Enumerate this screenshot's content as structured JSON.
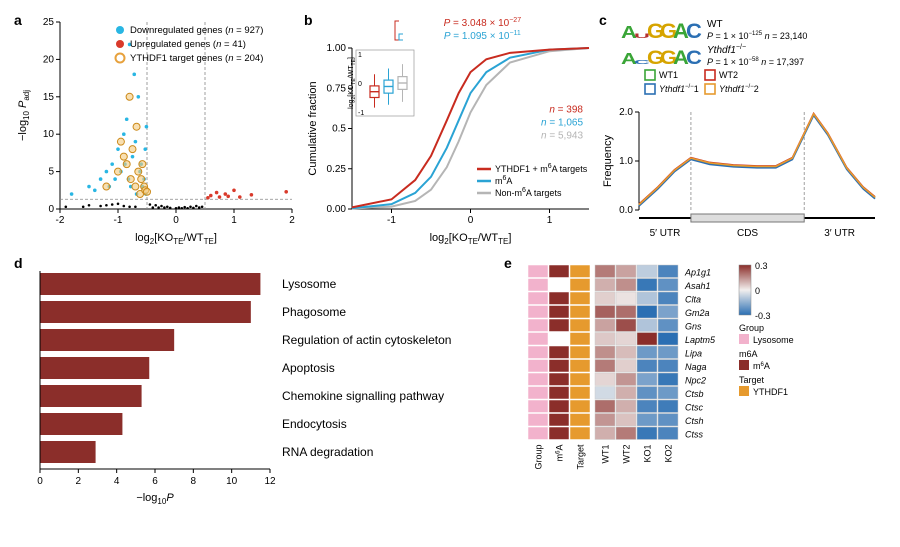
{
  "panel_a": {
    "label": "a",
    "type": "scatter",
    "xlabel": "log2[KOTE/WTTE]",
    "ylabel": "−log10 Padj",
    "xlim": [
      -2,
      2
    ],
    "xticks": [
      -2,
      -1,
      0,
      1,
      2
    ],
    "ylim": [
      0,
      25
    ],
    "yticks": [
      0,
      5,
      10,
      15,
      20,
      25
    ],
    "vlines_x": [
      -0.5,
      0.5
    ],
    "hline_y": 1.3,
    "legend": [
      {
        "label": "Downregulated genes (n = 927)",
        "color": "#29b6e3",
        "marker": "circle"
      },
      {
        "label": "Upregulated genes (n = 41)",
        "color": "#d93a2b",
        "marker": "circle"
      },
      {
        "label": "YTHDF1 target genes (n = 204)",
        "color": "#e7a13c",
        "marker": "circle-open"
      }
    ],
    "points_black": [
      [
        -1.9,
        0.3
      ],
      [
        -1.6,
        0.3
      ],
      [
        -1.5,
        0.5
      ],
      [
        -1.3,
        0.4
      ],
      [
        -1.2,
        0.5
      ],
      [
        -1.1,
        0.6
      ],
      [
        -1.0,
        0.7
      ],
      [
        -0.9,
        0.4
      ],
      [
        -0.8,
        0.3
      ],
      [
        -0.7,
        0.3
      ],
      [
        -0.4,
        0.2
      ],
      [
        -0.3,
        0.2
      ],
      [
        -0.2,
        0.2
      ],
      [
        -0.1,
        0.15
      ],
      [
        0.0,
        0.1
      ],
      [
        0.1,
        0.1
      ],
      [
        0.2,
        0.1
      ],
      [
        0.3,
        0.15
      ],
      [
        0.4,
        0.2
      ],
      [
        0.45,
        0.3
      ],
      [
        -0.45,
        0.6
      ],
      [
        -0.35,
        0.5
      ],
      [
        -0.25,
        0.4
      ],
      [
        -0.15,
        0.3
      ],
      [
        0.05,
        0.2
      ],
      [
        0.15,
        0.25
      ],
      [
        0.25,
        0.3
      ],
      [
        0.35,
        0.4
      ]
    ],
    "points_down": [
      [
        -1.8,
        2
      ],
      [
        -1.5,
        3
      ],
      [
        -1.4,
        2.5
      ],
      [
        -1.3,
        4
      ],
      [
        -1.2,
        5
      ],
      [
        -1.15,
        3
      ],
      [
        -1.1,
        6
      ],
      [
        -1.05,
        4
      ],
      [
        -1.0,
        8
      ],
      [
        -0.95,
        5
      ],
      [
        -0.9,
        10
      ],
      [
        -0.88,
        6
      ],
      [
        -0.85,
        12
      ],
      [
        -0.82,
        4
      ],
      [
        -0.8,
        22
      ],
      [
        -0.78,
        3
      ],
      [
        -0.75,
        7
      ],
      [
        -0.72,
        18
      ],
      [
        -0.7,
        9
      ],
      [
        -0.68,
        2
      ],
      [
        -0.65,
        15
      ],
      [
        -0.62,
        5
      ],
      [
        -0.6,
        6
      ],
      [
        -0.58,
        3
      ],
      [
        -0.55,
        4
      ],
      [
        -0.53,
        8
      ],
      [
        -0.52,
        2
      ],
      [
        -0.51,
        11
      ]
    ],
    "points_up": [
      [
        0.55,
        1.5
      ],
      [
        0.6,
        1.8
      ],
      [
        0.7,
        2.2
      ],
      [
        0.75,
        1.6
      ],
      [
        0.85,
        2.0
      ],
      [
        0.9,
        1.7
      ],
      [
        1.0,
        2.5
      ],
      [
        1.1,
        1.6
      ],
      [
        1.3,
        1.9
      ],
      [
        1.9,
        2.3
      ]
    ],
    "points_target": [
      [
        -1.2,
        3
      ],
      [
        -1.0,
        5
      ],
      [
        -0.95,
        9
      ],
      [
        -0.9,
        7
      ],
      [
        -0.85,
        6
      ],
      [
        -0.8,
        15
      ],
      [
        -0.78,
        4
      ],
      [
        -0.75,
        8
      ],
      [
        -0.7,
        3
      ],
      [
        -0.68,
        11
      ],
      [
        -0.65,
        5
      ],
      [
        -0.62,
        2
      ],
      [
        -0.6,
        4
      ],
      [
        -0.58,
        6
      ],
      [
        -0.55,
        3
      ],
      [
        -0.53,
        2.5
      ],
      [
        -0.5,
        2.3
      ]
    ],
    "colors": {
      "black": "#000000",
      "down": "#29b6e3",
      "up": "#d93a2b",
      "target_fill": "#f4c97d",
      "target_stroke": "#cc8a1a"
    }
  },
  "panel_b": {
    "label": "b",
    "type": "ecdf",
    "title_p1": {
      "text": "P = 3.048 × 10−27",
      "color": "#c82b1f"
    },
    "title_p2": {
      "text": "P = 1.095 × 10−11",
      "color": "#2aa3d4"
    },
    "xlabel": "log2[KOTE/WTTE]",
    "ylabel": "Cumulative fraction",
    "xlim": [
      -1.5,
      1.5
    ],
    "xticks": [
      -1,
      0,
      1
    ],
    "ylim": [
      0,
      1
    ],
    "yticks": [
      0,
      0.25,
      0.5,
      0.75,
      1.0
    ],
    "legend": [
      {
        "label": "YTHDF1 + m6A targets",
        "color": "#c82b1f"
      },
      {
        "label": "m6A",
        "color": "#2aa3d4"
      },
      {
        "label": "Non-m6A targets",
        "color": "#b5b5b5"
      }
    ],
    "n_labels": [
      {
        "text": "n = 398",
        "color": "#c82b1f"
      },
      {
        "text": "n = 1,065",
        "color": "#2aa3d4"
      },
      {
        "text": "n = 5,943",
        "color": "#b5b5b5"
      }
    ],
    "curves": {
      "red": [
        [
          -1.5,
          0.01
        ],
        [
          -1.0,
          0.06
        ],
        [
          -0.7,
          0.18
        ],
        [
          -0.5,
          0.33
        ],
        [
          -0.3,
          0.55
        ],
        [
          -0.15,
          0.72
        ],
        [
          0.0,
          0.85
        ],
        [
          0.2,
          0.93
        ],
        [
          0.5,
          0.97
        ],
        [
          1.0,
          0.99
        ],
        [
          1.5,
          1.0
        ]
      ],
      "cyan": [
        [
          -1.5,
          0.005
        ],
        [
          -1.0,
          0.03
        ],
        [
          -0.7,
          0.1
        ],
        [
          -0.5,
          0.2
        ],
        [
          -0.3,
          0.38
        ],
        [
          -0.15,
          0.55
        ],
        [
          0.0,
          0.72
        ],
        [
          0.2,
          0.85
        ],
        [
          0.5,
          0.94
        ],
        [
          1.0,
          0.99
        ],
        [
          1.5,
          1.0
        ]
      ],
      "grey": [
        [
          -1.5,
          0.003
        ],
        [
          -1.0,
          0.015
        ],
        [
          -0.7,
          0.05
        ],
        [
          -0.5,
          0.12
        ],
        [
          -0.3,
          0.26
        ],
        [
          -0.15,
          0.42
        ],
        [
          0.0,
          0.6
        ],
        [
          0.2,
          0.77
        ],
        [
          0.5,
          0.91
        ],
        [
          1.0,
          0.98
        ],
        [
          1.5,
          1.0
        ]
      ]
    },
    "inset": {
      "ylabel": "log2[KOTE/WTTE]",
      "ylim": [
        -1,
        1
      ],
      "yticks": [
        -1,
        0,
        1
      ],
      "boxes": [
        {
          "color": "#c82b1f",
          "median": -0.3,
          "q1": -0.5,
          "q3": -0.1,
          "wlo": -0.85,
          "whi": 0.3
        },
        {
          "color": "#2aa3d4",
          "median": -0.12,
          "q1": -0.35,
          "q3": 0.1,
          "wlo": -0.75,
          "whi": 0.5
        },
        {
          "color": "#b5b5b5",
          "median": 0.0,
          "q1": -0.22,
          "q3": 0.22,
          "wlo": -0.65,
          "whi": 0.65
        }
      ]
    }
  },
  "panel_c": {
    "label": "c",
    "type": "metagene",
    "logo_colors": {
      "A": "#3aa537",
      "U": "#b43030",
      "G": "#d6a400",
      "C": "#2b6fb3"
    },
    "logo_wt": [
      [
        "A",
        1.6
      ],
      [
        "U",
        0.6
      ],
      [
        "G",
        1.9
      ],
      [
        "G",
        1.9
      ],
      [
        "A",
        1.9
      ],
      [
        "C",
        1.9
      ]
    ],
    "logo_ko": [
      [
        "A",
        1.4
      ],
      [
        "C",
        0.5
      ],
      [
        "G",
        1.8
      ],
      [
        "G",
        1.8
      ],
      [
        "A",
        1.8
      ],
      [
        "C",
        1.8
      ]
    ],
    "logo_labels": [
      {
        "text": "WT",
        "sub": "P = 1 × 10−125  n = 23,140"
      },
      {
        "text": "Ythdf1−/−",
        "sub": "P = 1 × 10−58   n = 17,397"
      }
    ],
    "ylabel": "Frequency",
    "ylim": [
      0,
      2
    ],
    "yticks": [
      0,
      1.0,
      2.0
    ],
    "regions": [
      "5′ UTR",
      "CDS",
      "3′ UTR"
    ],
    "region_bounds": [
      0.22,
      0.7
    ],
    "legend": [
      {
        "label": "WT1",
        "color": "#3aa537"
      },
      {
        "label": "WT2",
        "color": "#c82b1f"
      },
      {
        "label": "Ythdf1−/−1",
        "color": "#2b6fb3"
      },
      {
        "label": "Ythdf1−/−2",
        "color": "#e69a2e"
      }
    ],
    "curve": [
      [
        0,
        0.1
      ],
      [
        0.08,
        0.45
      ],
      [
        0.15,
        0.8
      ],
      [
        0.22,
        1.05
      ],
      [
        0.3,
        0.95
      ],
      [
        0.4,
        0.9
      ],
      [
        0.5,
        0.88
      ],
      [
        0.58,
        0.88
      ],
      [
        0.65,
        1.05
      ],
      [
        0.7,
        1.55
      ],
      [
        0.74,
        1.95
      ],
      [
        0.8,
        1.55
      ],
      [
        0.88,
        0.85
      ],
      [
        0.95,
        0.45
      ],
      [
        1.0,
        0.25
      ]
    ]
  },
  "panel_d": {
    "label": "d",
    "type": "bar",
    "xlabel": "−log10P",
    "xlim": [
      0,
      12
    ],
    "xticks": [
      0,
      2,
      4,
      6,
      8,
      10,
      12
    ],
    "bar_color": "#8b2e2a",
    "items": [
      {
        "label": "Lysosome",
        "value": 11.5
      },
      {
        "label": "Phagosome",
        "value": 11.0
      },
      {
        "label": "Regulation of actin cytoskeleton",
        "value": 7.0
      },
      {
        "label": "Apoptosis",
        "value": 5.7
      },
      {
        "label": "Chemokine signalling pathway",
        "value": 5.3
      },
      {
        "label": "Endocytosis",
        "value": 4.3
      },
      {
        "label": "RNA degradation",
        "value": 2.9
      }
    ]
  },
  "panel_e": {
    "label": "e",
    "type": "heatmap",
    "row_labels": [
      "Ap1g1",
      "Asah1",
      "Clta",
      "Gm2a",
      "Gns",
      "Laptm5",
      "Lipa",
      "Naga",
      "Npc2",
      "Ctsb",
      "Ctsc",
      "Ctsh",
      "Ctss"
    ],
    "col_labels": [
      "Group",
      "m6A",
      "Target",
      "WT1",
      "WT2",
      "KO1",
      "KO2"
    ],
    "annot_colors": {
      "Lysosome": "#f2b2cc",
      "m6A": "#8b2e2a",
      "YTHDF1": "#e69a2e",
      "none": "#ffffff"
    },
    "value_scale": {
      "min": -0.3,
      "mid": 0,
      "max": 0.3,
      "min_color": "#2b6fb3",
      "mid_color": "#f2efee",
      "max_color": "#8b2e2a"
    },
    "scale_ticks": [
      0.3,
      0,
      -0.3
    ],
    "group_legend": [
      {
        "label": "Lysosome",
        "color": "#f2b2cc",
        "title": "Group"
      },
      {
        "label": "m6A",
        "color": "#8b2e2a",
        "title": "m6A"
      },
      {
        "label": "YTHDF1",
        "color": "#e69a2e",
        "title": "Target"
      }
    ],
    "annot_group": [
      "Lysosome",
      "Lysosome",
      "Lysosome",
      "Lysosome",
      "Lysosome",
      "Lysosome",
      "Lysosome",
      "Lysosome",
      "Lysosome",
      "Lysosome",
      "Lysosome",
      "Lysosome",
      "Lysosome"
    ],
    "annot_m6a": [
      "m6A",
      "none",
      "m6A",
      "m6A",
      "m6A",
      "none",
      "m6A",
      "m6A",
      "m6A",
      "m6A",
      "m6A",
      "m6A",
      "m6A"
    ],
    "annot_target": [
      "YTHDF1",
      "YTHDF1",
      "YTHDF1",
      "YTHDF1",
      "YTHDF1",
      "YTHDF1",
      "YTHDF1",
      "YTHDF1",
      "YTHDF1",
      "YTHDF1",
      "YTHDF1",
      "YTHDF1",
      "YTHDF1"
    ],
    "values": [
      [
        0.18,
        0.12,
        -0.08,
        -0.25
      ],
      [
        0.1,
        0.15,
        -0.28,
        -0.22
      ],
      [
        0.05,
        0.02,
        -0.1,
        -0.25
      ],
      [
        0.22,
        0.2,
        -0.3,
        -0.18
      ],
      [
        0.12,
        0.25,
        -0.1,
        -0.22
      ],
      [
        0.06,
        0.04,
        0.3,
        -0.3
      ],
      [
        0.15,
        0.08,
        -0.2,
        -0.2
      ],
      [
        0.18,
        0.05,
        -0.25,
        -0.25
      ],
      [
        0.04,
        0.14,
        -0.18,
        -0.28
      ],
      [
        -0.05,
        0.1,
        -0.22,
        -0.2
      ],
      [
        0.2,
        0.1,
        -0.25,
        -0.27
      ],
      [
        0.14,
        0.07,
        -0.2,
        -0.22
      ],
      [
        0.1,
        0.18,
        -0.28,
        -0.25
      ]
    ]
  }
}
